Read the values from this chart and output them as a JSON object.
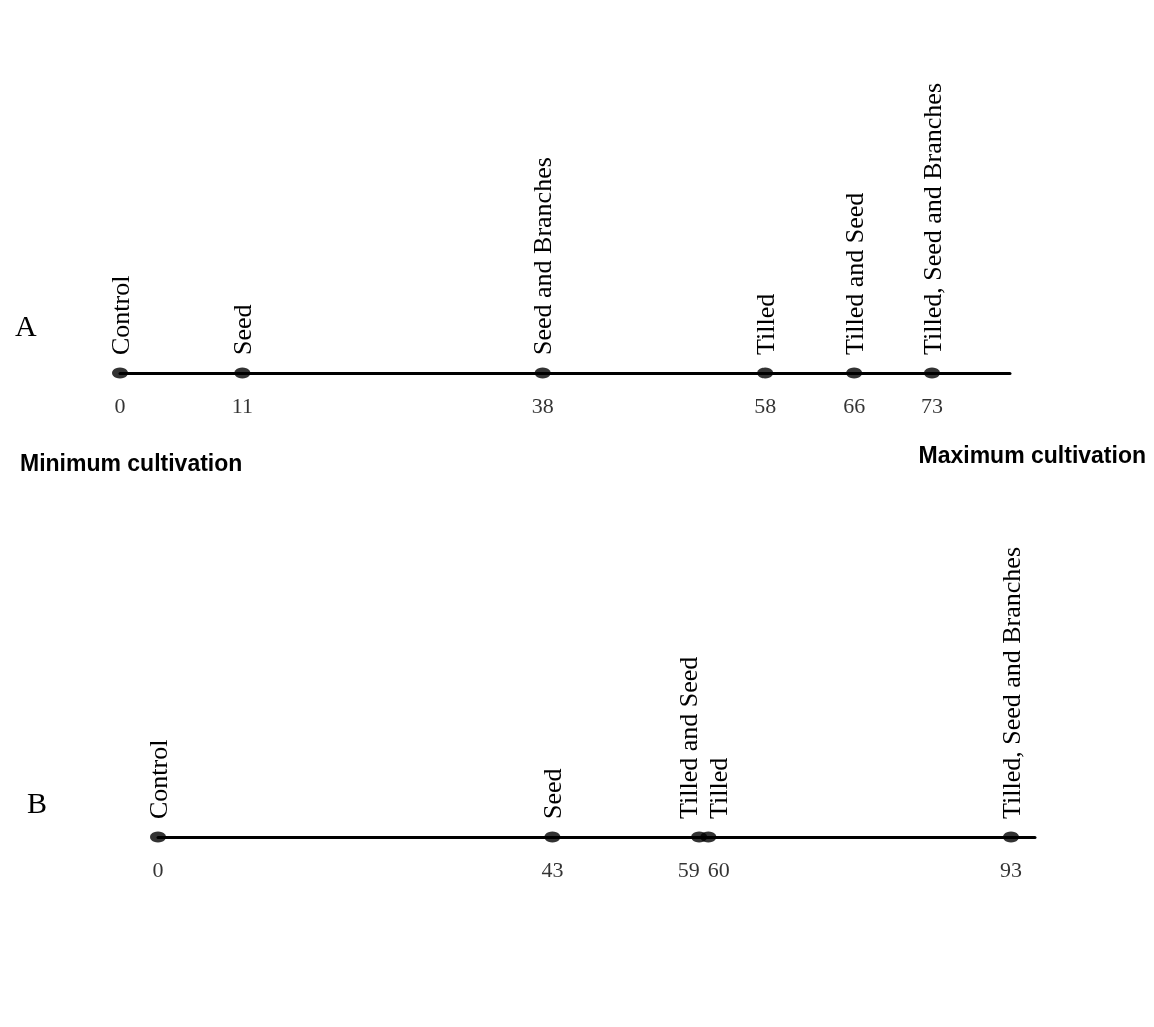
{
  "chart_data": [
    {
      "type": "other",
      "title": "A",
      "categories": [
        "Control",
        "Seed",
        "Seed and Branches",
        "Tilled",
        "Tilled and Seed",
        "Tilled, Seed and Branches"
      ],
      "values": [
        0,
        11,
        38,
        58,
        66,
        73
      ],
      "color": "#000000",
      "data_labels": true,
      "annotations": [
        "Minimum cultivation",
        "Maximum cultivation"
      ]
    },
    {
      "type": "other",
      "title": "B",
      "categories": [
        "Control",
        "Seed",
        "Tilled and Seed",
        "Tilled",
        "Tilled, Seed and Branches"
      ],
      "values": [
        0,
        43,
        59,
        60,
        93
      ],
      "color": "#000000",
      "data_labels": true
    }
  ]
}
